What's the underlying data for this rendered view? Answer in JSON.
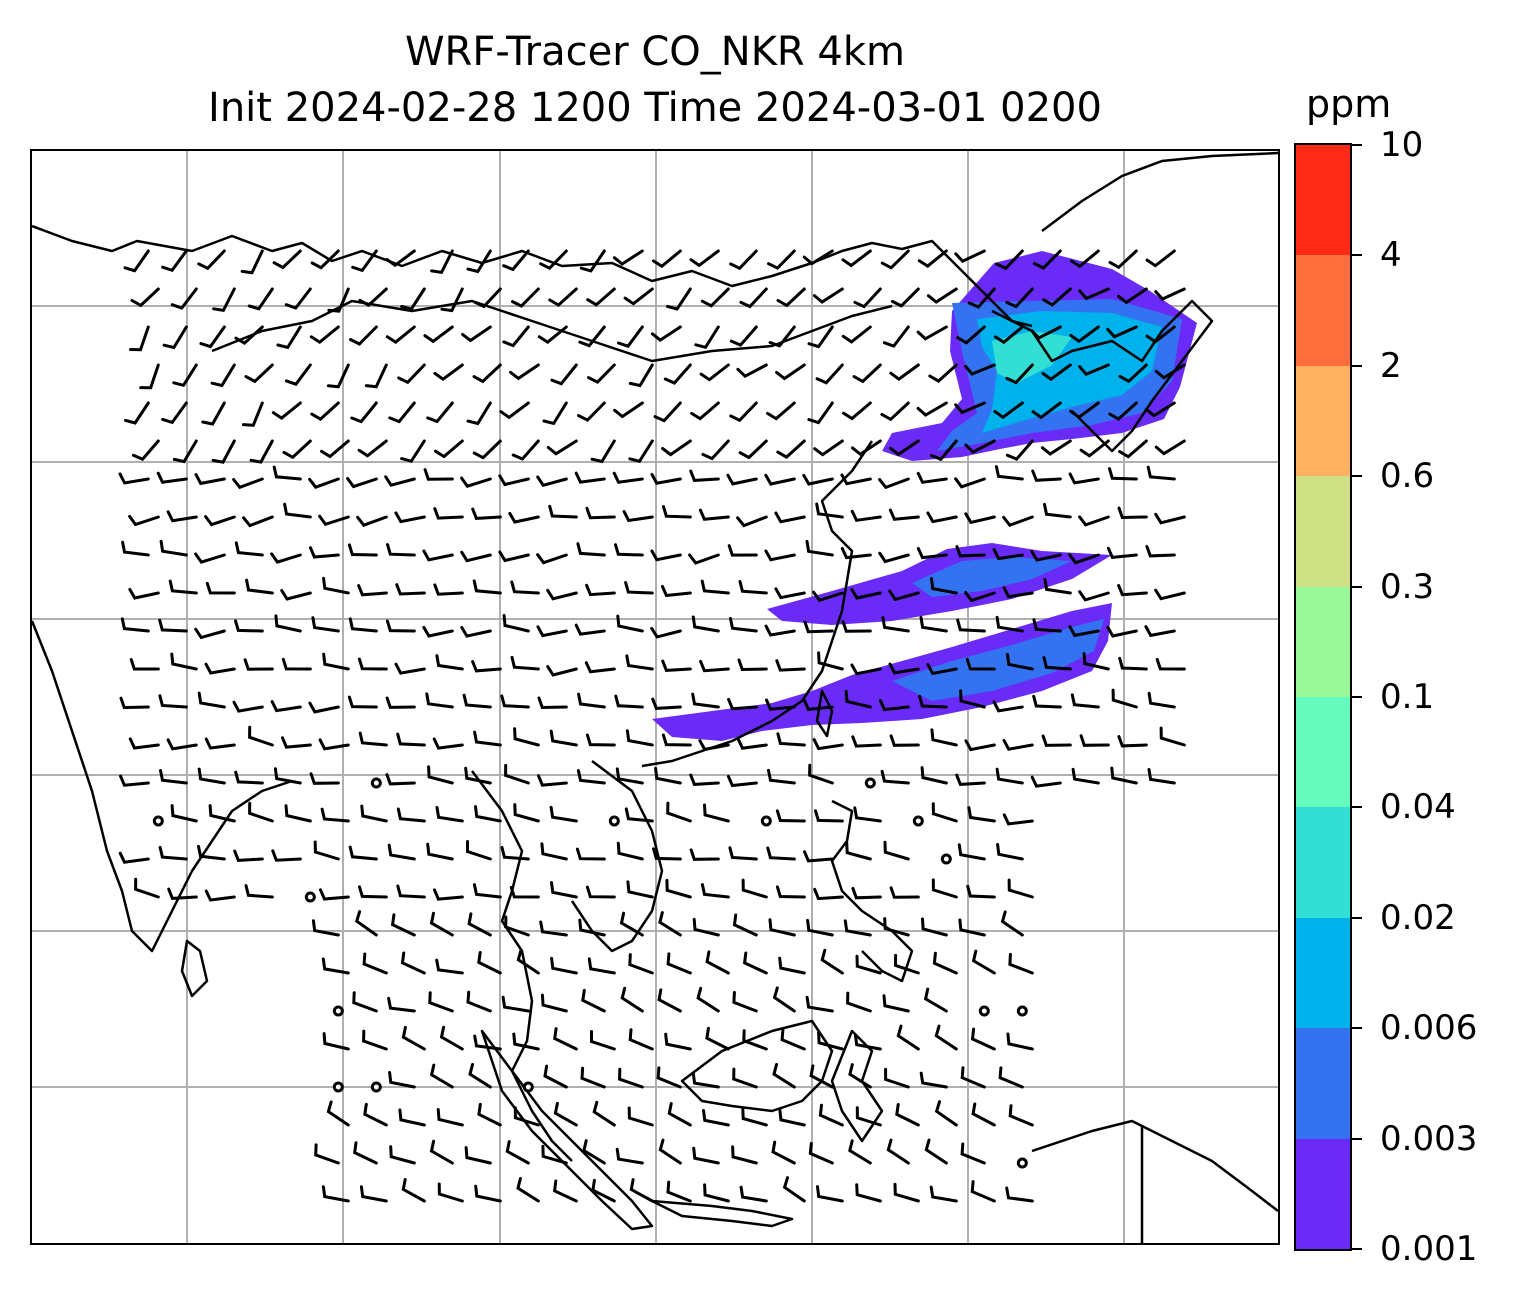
{
  "title": {
    "line1": "WRF-Tracer CO_NKR 4km",
    "line2": "Init 2024-02-28 1200 Time 2024-03-01 0200"
  },
  "colorbar": {
    "units": "ppm",
    "levels": [
      "0.001",
      "0.003",
      "0.006",
      "0.02",
      "0.04",
      "0.1",
      "0.3",
      "0.6",
      "2",
      "4",
      "10"
    ],
    "colors": [
      "#6a2bf7",
      "#3373f2",
      "#00b2eb",
      "#33ded4",
      "#66fbbe",
      "#99f999",
      "#cfe084",
      "#ffb061",
      "#ff6e3c",
      "#ff2b18"
    ]
  },
  "map": {
    "grid": true,
    "features": [
      "coastlines",
      "country borders",
      "wind barbs",
      "tracer concentration contours"
    ],
    "tracer_colors": {
      "low": "#6a2bf7",
      "mid": "#3373f2",
      "high": "#00b2eb",
      "peak": "#33ded4"
    }
  }
}
